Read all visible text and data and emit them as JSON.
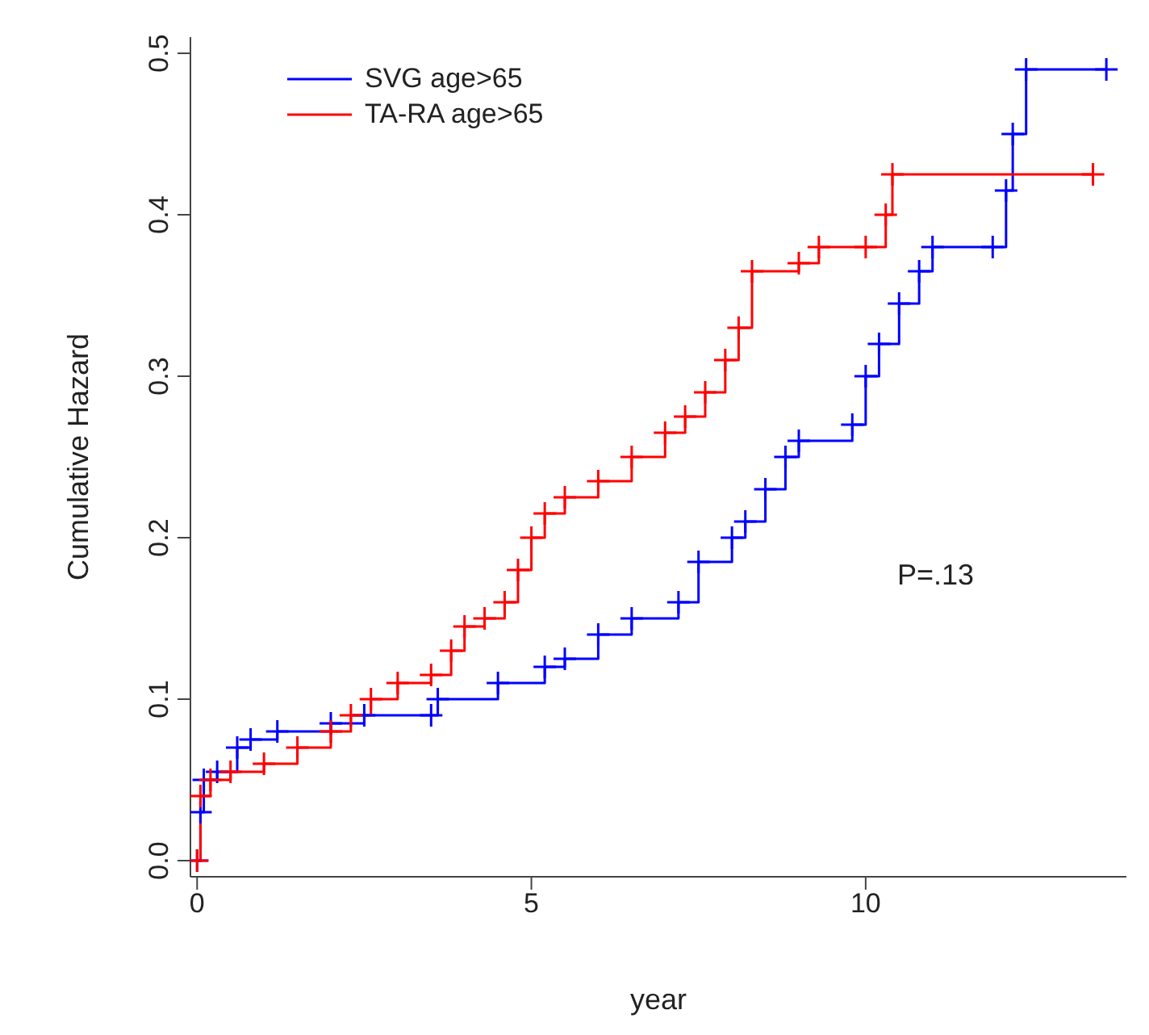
{
  "chart_data": {
    "type": "step",
    "xlabel": "year",
    "ylabel": "Cumulative Hazard",
    "xlim": [
      -0.1,
      13.9
    ],
    "ylim": [
      -0.01,
      0.51
    ],
    "xticks": [
      0,
      5,
      10
    ],
    "yticks": [
      {
        "value": 0,
        "label": "0.0"
      },
      0.1,
      0.2,
      0.3,
      0.4,
      0.5
    ],
    "grid": false,
    "legend": "top left",
    "marker": "cross",
    "line_style": "solid",
    "annotations": [
      "P=.13"
    ],
    "series": [
      {
        "name": "SVG age>65",
        "color": "#0000ff",
        "x": [
          0,
          0.05,
          0.1,
          0.3,
          0.6,
          0.8,
          1.2,
          2.0,
          2.5,
          3.5,
          3.6,
          4.5,
          5.2,
          5.5,
          6.0,
          6.5,
          7.2,
          7.5,
          8.0,
          8.2,
          8.5,
          8.8,
          9.0,
          9.8,
          10.0,
          10.2,
          10.5,
          10.8,
          11.0,
          11.9,
          12.1,
          12.2,
          12.4,
          13.6
        ],
        "values": [
          0,
          0.03,
          0.05,
          0.055,
          0.07,
          0.075,
          0.08,
          0.085,
          0.09,
          0.09,
          0.1,
          0.11,
          0.12,
          0.125,
          0.14,
          0.15,
          0.16,
          0.185,
          0.2,
          0.21,
          0.23,
          0.25,
          0.26,
          0.27,
          0.3,
          0.32,
          0.345,
          0.365,
          0.38,
          0.38,
          0.415,
          0.45,
          0.49,
          0.49
        ]
      },
      {
        "name": "TA-RA age>65",
        "color": "#ff0000",
        "x": [
          0,
          0.05,
          0.2,
          0.5,
          1.0,
          1.5,
          2.0,
          2.3,
          2.6,
          3.0,
          3.5,
          3.8,
          4.0,
          4.3,
          4.6,
          4.8,
          5.0,
          5.2,
          5.5,
          6.0,
          6.5,
          7.0,
          7.3,
          7.6,
          7.9,
          8.1,
          8.3,
          9.0,
          9.3,
          10.0,
          10.3,
          10.4,
          13.4
        ],
        "values": [
          0,
          0.04,
          0.05,
          0.055,
          0.06,
          0.07,
          0.08,
          0.09,
          0.1,
          0.11,
          0.115,
          0.13,
          0.145,
          0.15,
          0.16,
          0.18,
          0.2,
          0.215,
          0.225,
          0.235,
          0.25,
          0.265,
          0.275,
          0.29,
          0.31,
          0.33,
          0.365,
          0.37,
          0.38,
          0.38,
          0.4,
          0.425,
          0.425
        ]
      }
    ]
  }
}
